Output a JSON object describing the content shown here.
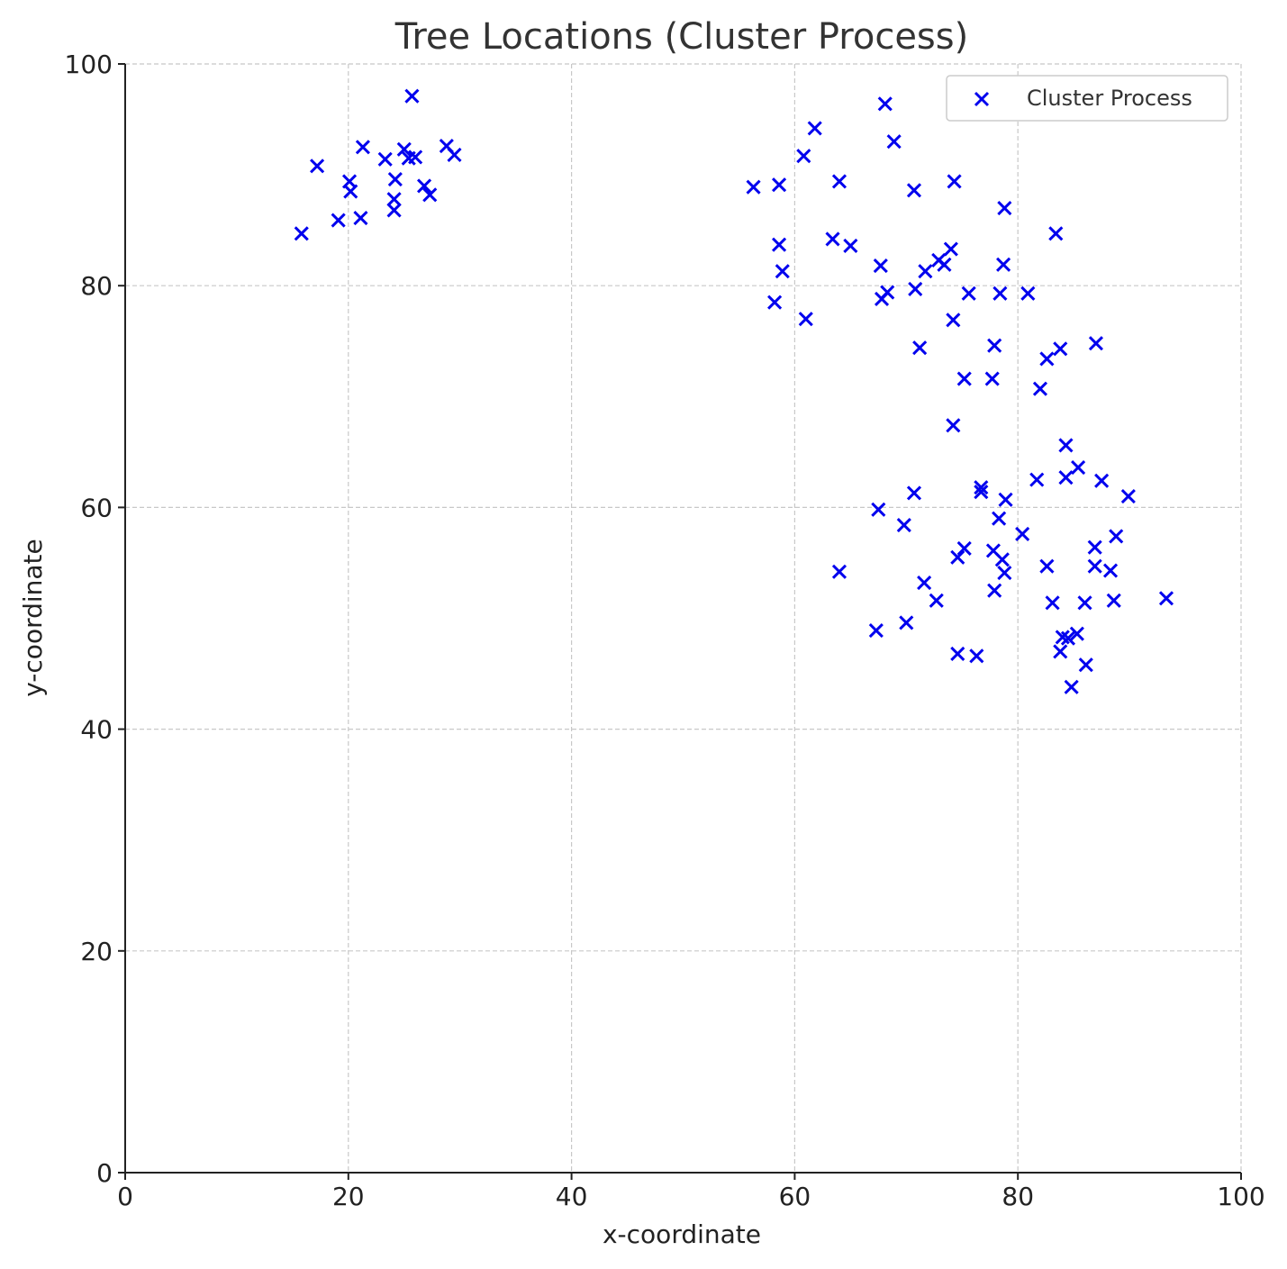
{
  "chart_data": {
    "type": "scatter",
    "title": "Tree Locations (Cluster Process)",
    "xlabel": "x-coordinate",
    "ylabel": "y-coordinate",
    "xlim": [
      0,
      100
    ],
    "ylim": [
      0,
      100
    ],
    "xticks": [
      "0",
      "20",
      "40",
      "60",
      "80",
      "100"
    ],
    "yticks": [
      "0",
      "20",
      "40",
      "60",
      "80",
      "100"
    ],
    "grid": true,
    "legend_position": "top-right",
    "marker": "x",
    "color": "#0000ee",
    "series": [
      {
        "name": "Cluster Process",
        "points": [
          [
            15.8,
            84.7
          ],
          [
            17.2,
            90.8
          ],
          [
            19.1,
            85.9
          ],
          [
            20.1,
            89.4
          ],
          [
            20.2,
            88.5
          ],
          [
            21.1,
            86.1
          ],
          [
            21.3,
            92.5
          ],
          [
            23.3,
            91.4
          ],
          [
            24.1,
            87.8
          ],
          [
            24.1,
            86.8
          ],
          [
            24.2,
            89.6
          ],
          [
            25.0,
            92.3
          ],
          [
            25.4,
            91.5
          ],
          [
            25.7,
            97.1
          ],
          [
            26.0,
            91.6
          ],
          [
            26.8,
            89.0
          ],
          [
            27.3,
            88.2
          ],
          [
            28.8,
            92.6
          ],
          [
            29.5,
            91.8
          ],
          [
            56.3,
            88.9
          ],
          [
            58.2,
            78.5
          ],
          [
            58.6,
            89.1
          ],
          [
            58.6,
            83.7
          ],
          [
            58.9,
            81.3
          ],
          [
            60.8,
            91.7
          ],
          [
            61.0,
            77.0
          ],
          [
            61.8,
            94.2
          ],
          [
            63.4,
            84.2
          ],
          [
            64.0,
            89.4
          ],
          [
            65.0,
            83.6
          ],
          [
            67.7,
            81.8
          ],
          [
            67.8,
            78.8
          ],
          [
            68.1,
            96.4
          ],
          [
            68.3,
            79.4
          ],
          [
            68.9,
            93.0
          ],
          [
            70.7,
            88.6
          ],
          [
            70.8,
            79.7
          ],
          [
            71.2,
            74.4
          ],
          [
            71.7,
            81.3
          ],
          [
            72.9,
            82.3
          ],
          [
            73.4,
            81.9
          ],
          [
            74.0,
            83.3
          ],
          [
            74.2,
            76.9
          ],
          [
            74.3,
            89.4
          ],
          [
            75.2,
            71.6
          ],
          [
            75.6,
            79.3
          ],
          [
            77.7,
            71.6
          ],
          [
            77.9,
            74.6
          ],
          [
            78.4,
            79.3
          ],
          [
            78.7,
            81.9
          ],
          [
            78.8,
            87.0
          ],
          [
            80.9,
            79.3
          ],
          [
            82.0,
            70.7
          ],
          [
            82.6,
            73.4
          ],
          [
            83.4,
            84.7
          ],
          [
            83.8,
            74.3
          ],
          [
            87.0,
            74.8
          ],
          [
            74.2,
            67.4
          ],
          [
            84.3,
            65.6
          ],
          [
            85.4,
            63.6
          ],
          [
            84.3,
            62.7
          ],
          [
            81.7,
            62.5
          ],
          [
            87.5,
            62.4
          ],
          [
            89.9,
            61.0
          ],
          [
            76.7,
            61.8
          ],
          [
            76.7,
            61.4
          ],
          [
            70.7,
            61.3
          ],
          [
            78.9,
            60.7
          ],
          [
            67.5,
            59.8
          ],
          [
            78.3,
            59.0
          ],
          [
            69.8,
            58.4
          ],
          [
            80.4,
            57.6
          ],
          [
            88.8,
            57.4
          ],
          [
            75.2,
            56.3
          ],
          [
            77.8,
            56.1
          ],
          [
            86.9,
            56.4
          ],
          [
            74.6,
            55.5
          ],
          [
            78.6,
            55.3
          ],
          [
            78.8,
            54.1
          ],
          [
            82.6,
            54.7
          ],
          [
            86.9,
            54.7
          ],
          [
            88.3,
            54.3
          ],
          [
            64.0,
            54.2
          ],
          [
            71.6,
            53.2
          ],
          [
            77.9,
            52.5
          ],
          [
            72.7,
            51.6
          ],
          [
            83.1,
            51.4
          ],
          [
            86.0,
            51.4
          ],
          [
            88.6,
            51.6
          ],
          [
            93.3,
            51.8
          ],
          [
            67.3,
            48.9
          ],
          [
            70.0,
            49.6
          ],
          [
            84.0,
            48.3
          ],
          [
            84.5,
            48.2
          ],
          [
            85.3,
            48.6
          ],
          [
            74.6,
            46.8
          ],
          [
            76.3,
            46.6
          ],
          [
            83.8,
            47.0
          ],
          [
            86.1,
            45.8
          ],
          [
            84.8,
            43.8
          ]
        ]
      }
    ]
  }
}
